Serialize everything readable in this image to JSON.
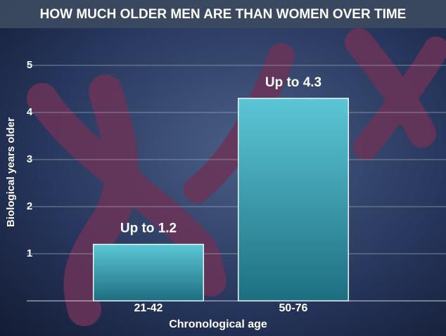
{
  "chart_data": {
    "type": "bar",
    "title": "HOW MUCH OLDER MEN ARE THAN WOMEN OVER TIME",
    "x_label": "Chronological age",
    "y_label": "Biological years older",
    "categories": [
      "21-42",
      "50-76"
    ],
    "values": [
      1.2,
      4.3
    ],
    "value_labels": [
      "Up to 1.2",
      "Up to 4.3"
    ],
    "color": "#3aa3b4",
    "ylim": [
      0,
      5.5
    ],
    "yticks": [
      1,
      2,
      3,
      4,
      5
    ],
    "grid": true
  }
}
